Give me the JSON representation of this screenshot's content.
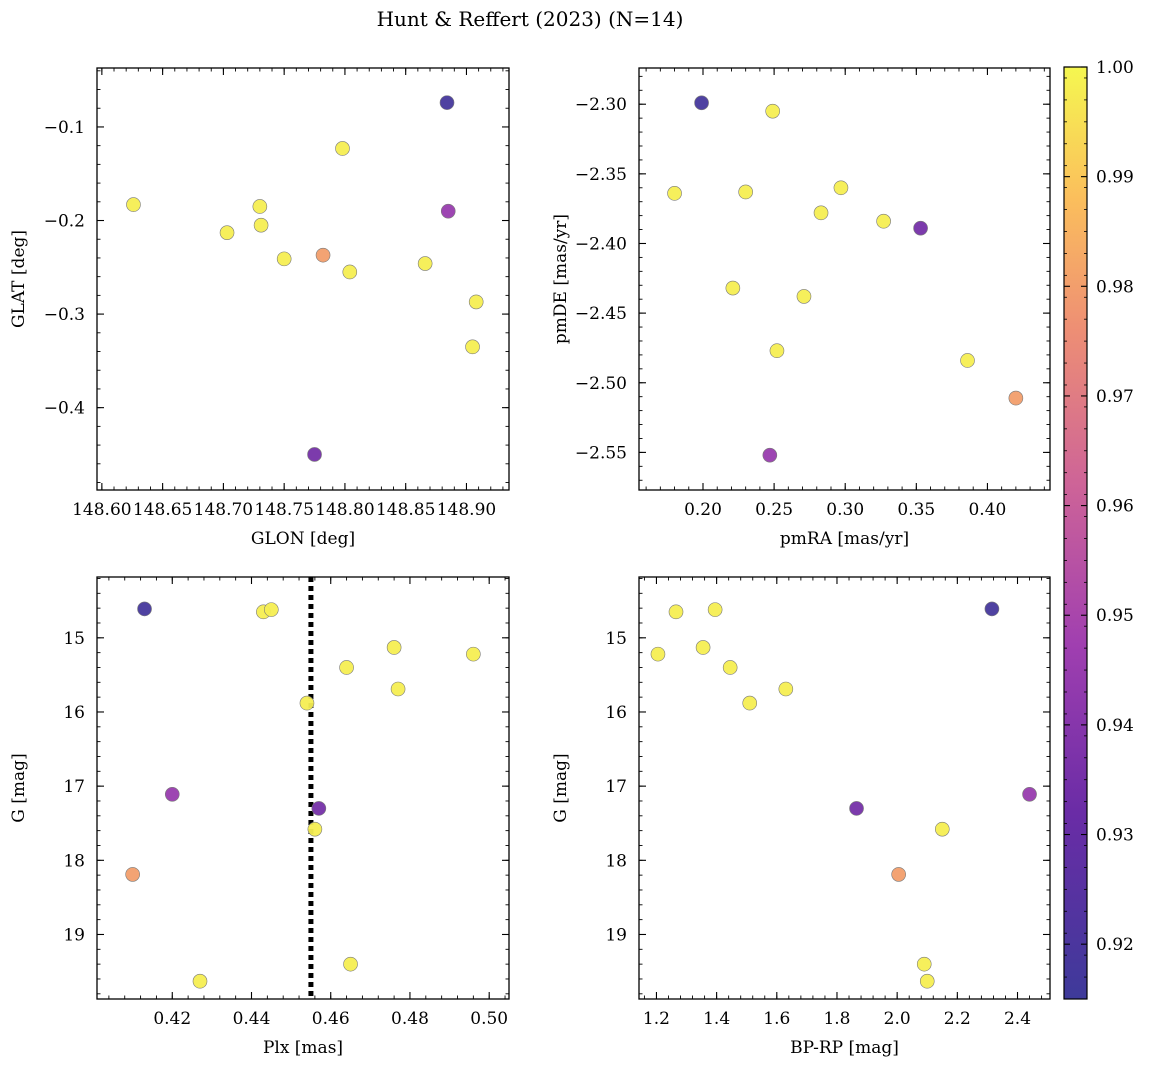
{
  "figure": {
    "title": "Hunt & Reffert (2023) (N=14)",
    "colorbar": {
      "vmin": 0.915,
      "vmax": 1.0,
      "ticks": [
        0.92,
        0.93,
        0.94,
        0.95,
        0.96,
        0.97,
        0.98,
        0.99,
        1.0
      ],
      "tick_labels": [
        "0.92",
        "0.93",
        "0.94",
        "0.95",
        "0.96",
        "0.97",
        "0.98",
        "0.99",
        "1.00"
      ],
      "colormap": "plasma (truncated)"
    }
  },
  "chart_data": [
    {
      "type": "scatter",
      "xlabel": "GLON [deg]",
      "ylabel": "GLAT [deg]",
      "xlim": [
        148.596,
        148.935
      ],
      "ylim": [
        -0.488,
        -0.037
      ],
      "y_inverted": false,
      "xticks": [
        148.6,
        148.65,
        148.7,
        148.75,
        148.8,
        148.85,
        148.9
      ],
      "xtick_labels": [
        "148.60",
        "148.65",
        "148.70",
        "148.75",
        "148.80",
        "148.85",
        "148.90"
      ],
      "yticks": [
        -0.1,
        -0.2,
        -0.3,
        -0.4
      ],
      "ytick_labels": [
        "−0.1",
        "−0.2",
        "−0.3",
        "−0.4"
      ],
      "points": [
        {
          "x": 148.626,
          "y": -0.183,
          "c": 0.998
        },
        {
          "x": 148.703,
          "y": -0.213,
          "c": 0.998
        },
        {
          "x": 148.73,
          "y": -0.185,
          "c": 0.998
        },
        {
          "x": 148.731,
          "y": -0.205,
          "c": 0.998
        },
        {
          "x": 148.75,
          "y": -0.241,
          "c": 0.998
        },
        {
          "x": 148.782,
          "y": -0.237,
          "c": 0.98
        },
        {
          "x": 148.798,
          "y": -0.123,
          "c": 0.998
        },
        {
          "x": 148.804,
          "y": -0.255,
          "c": 0.998
        },
        {
          "x": 148.866,
          "y": -0.246,
          "c": 0.998
        },
        {
          "x": 148.884,
          "y": -0.074,
          "c": 0.918
        },
        {
          "x": 148.885,
          "y": -0.19,
          "c": 0.945
        },
        {
          "x": 148.908,
          "y": -0.287,
          "c": 0.998
        },
        {
          "x": 148.905,
          "y": -0.335,
          "c": 0.998
        },
        {
          "x": 148.775,
          "y": -0.45,
          "c": 0.935
        }
      ]
    },
    {
      "type": "scatter",
      "xlabel": "pmRA [mas/yr]",
      "ylabel": "pmDE [mas/yr]",
      "xlim": [
        0.155,
        0.444
      ],
      "ylim": [
        -2.577,
        -2.274
      ],
      "y_inverted": false,
      "xticks": [
        0.2,
        0.25,
        0.3,
        0.35,
        0.4
      ],
      "xtick_labels": [
        "0.20",
        "0.25",
        "0.30",
        "0.35",
        "0.40"
      ],
      "yticks": [
        -2.3,
        -2.35,
        -2.4,
        -2.45,
        -2.5,
        -2.55
      ],
      "ytick_labels": [
        "−2.30",
        "−2.35",
        "−2.40",
        "−2.45",
        "−2.50",
        "−2.55"
      ],
      "points": [
        {
          "x": 0.18,
          "y": -2.364,
          "c": 0.998
        },
        {
          "x": 0.199,
          "y": -2.299,
          "c": 0.918
        },
        {
          "x": 0.221,
          "y": -2.432,
          "c": 0.998
        },
        {
          "x": 0.23,
          "y": -2.363,
          "c": 0.998
        },
        {
          "x": 0.247,
          "y": -2.552,
          "c": 0.945
        },
        {
          "x": 0.249,
          "y": -2.305,
          "c": 0.998
        },
        {
          "x": 0.252,
          "y": -2.477,
          "c": 0.998
        },
        {
          "x": 0.271,
          "y": -2.438,
          "c": 0.998
        },
        {
          "x": 0.283,
          "y": -2.378,
          "c": 0.998
        },
        {
          "x": 0.297,
          "y": -2.36,
          "c": 0.998
        },
        {
          "x": 0.327,
          "y": -2.384,
          "c": 0.998
        },
        {
          "x": 0.353,
          "y": -2.389,
          "c": 0.935
        },
        {
          "x": 0.386,
          "y": -2.484,
          "c": 0.998
        },
        {
          "x": 0.42,
          "y": -2.511,
          "c": 0.98
        }
      ]
    },
    {
      "type": "scatter",
      "xlabel": "Plx [mas]",
      "ylabel": "G [mag]",
      "xlim": [
        0.401,
        0.505
      ],
      "ylim": [
        19.87,
        14.18
      ],
      "y_inverted": true,
      "vline": {
        "x": 0.455,
        "style": "dotted"
      },
      "xticks": [
        0.42,
        0.44,
        0.46,
        0.48,
        0.5
      ],
      "xtick_labels": [
        "0.42",
        "0.44",
        "0.46",
        "0.48",
        "0.50"
      ],
      "yticks": [
        15,
        16,
        17,
        18,
        19
      ],
      "ytick_labels": [
        "15",
        "16",
        "17",
        "18",
        "19"
      ],
      "points": [
        {
          "x": 0.413,
          "y": 14.61,
          "c": 0.918
        },
        {
          "x": 0.42,
          "y": 17.11,
          "c": 0.945
        },
        {
          "x": 0.41,
          "y": 18.19,
          "c": 0.98
        },
        {
          "x": 0.427,
          "y": 19.63,
          "c": 0.998
        },
        {
          "x": 0.443,
          "y": 14.65,
          "c": 0.998
        },
        {
          "x": 0.445,
          "y": 14.62,
          "c": 0.998
        },
        {
          "x": 0.454,
          "y": 15.88,
          "c": 0.998
        },
        {
          "x": 0.457,
          "y": 17.3,
          "c": 0.935
        },
        {
          "x": 0.456,
          "y": 17.58,
          "c": 0.998
        },
        {
          "x": 0.464,
          "y": 15.4,
          "c": 0.998
        },
        {
          "x": 0.465,
          "y": 19.4,
          "c": 0.998
        },
        {
          "x": 0.476,
          "y": 15.13,
          "c": 0.998
        },
        {
          "x": 0.477,
          "y": 15.69,
          "c": 0.998
        },
        {
          "x": 0.496,
          "y": 15.22,
          "c": 0.998
        }
      ]
    },
    {
      "type": "scatter",
      "xlabel": "BP-RP [mag]",
      "ylabel": "G [mag]",
      "xlim": [
        1.142,
        2.508
      ],
      "ylim": [
        19.87,
        14.18
      ],
      "y_inverted": true,
      "xticks": [
        1.2,
        1.4,
        1.6,
        1.8,
        2.0,
        2.2,
        2.4
      ],
      "xtick_labels": [
        "1.2",
        "1.4",
        "1.6",
        "1.8",
        "2.0",
        "2.2",
        "2.4"
      ],
      "yticks": [
        15,
        16,
        17,
        18,
        19
      ],
      "ytick_labels": [
        "15",
        "16",
        "17",
        "18",
        "19"
      ],
      "points": [
        {
          "x": 1.205,
          "y": 15.22,
          "c": 0.998
        },
        {
          "x": 1.265,
          "y": 14.65,
          "c": 0.998
        },
        {
          "x": 1.355,
          "y": 15.13,
          "c": 0.998
        },
        {
          "x": 1.395,
          "y": 14.62,
          "c": 0.998
        },
        {
          "x": 1.445,
          "y": 15.4,
          "c": 0.998
        },
        {
          "x": 1.51,
          "y": 15.88,
          "c": 0.998
        },
        {
          "x": 1.63,
          "y": 15.69,
          "c": 0.998
        },
        {
          "x": 1.865,
          "y": 17.3,
          "c": 0.935
        },
        {
          "x": 2.005,
          "y": 18.19,
          "c": 0.98
        },
        {
          "x": 2.15,
          "y": 17.58,
          "c": 0.998
        },
        {
          "x": 2.09,
          "y": 19.4,
          "c": 0.998
        },
        {
          "x": 2.1,
          "y": 19.63,
          "c": 0.998
        },
        {
          "x": 2.315,
          "y": 14.61,
          "c": 0.918
        },
        {
          "x": 2.44,
          "y": 17.11,
          "c": 0.945
        }
      ]
    }
  ]
}
